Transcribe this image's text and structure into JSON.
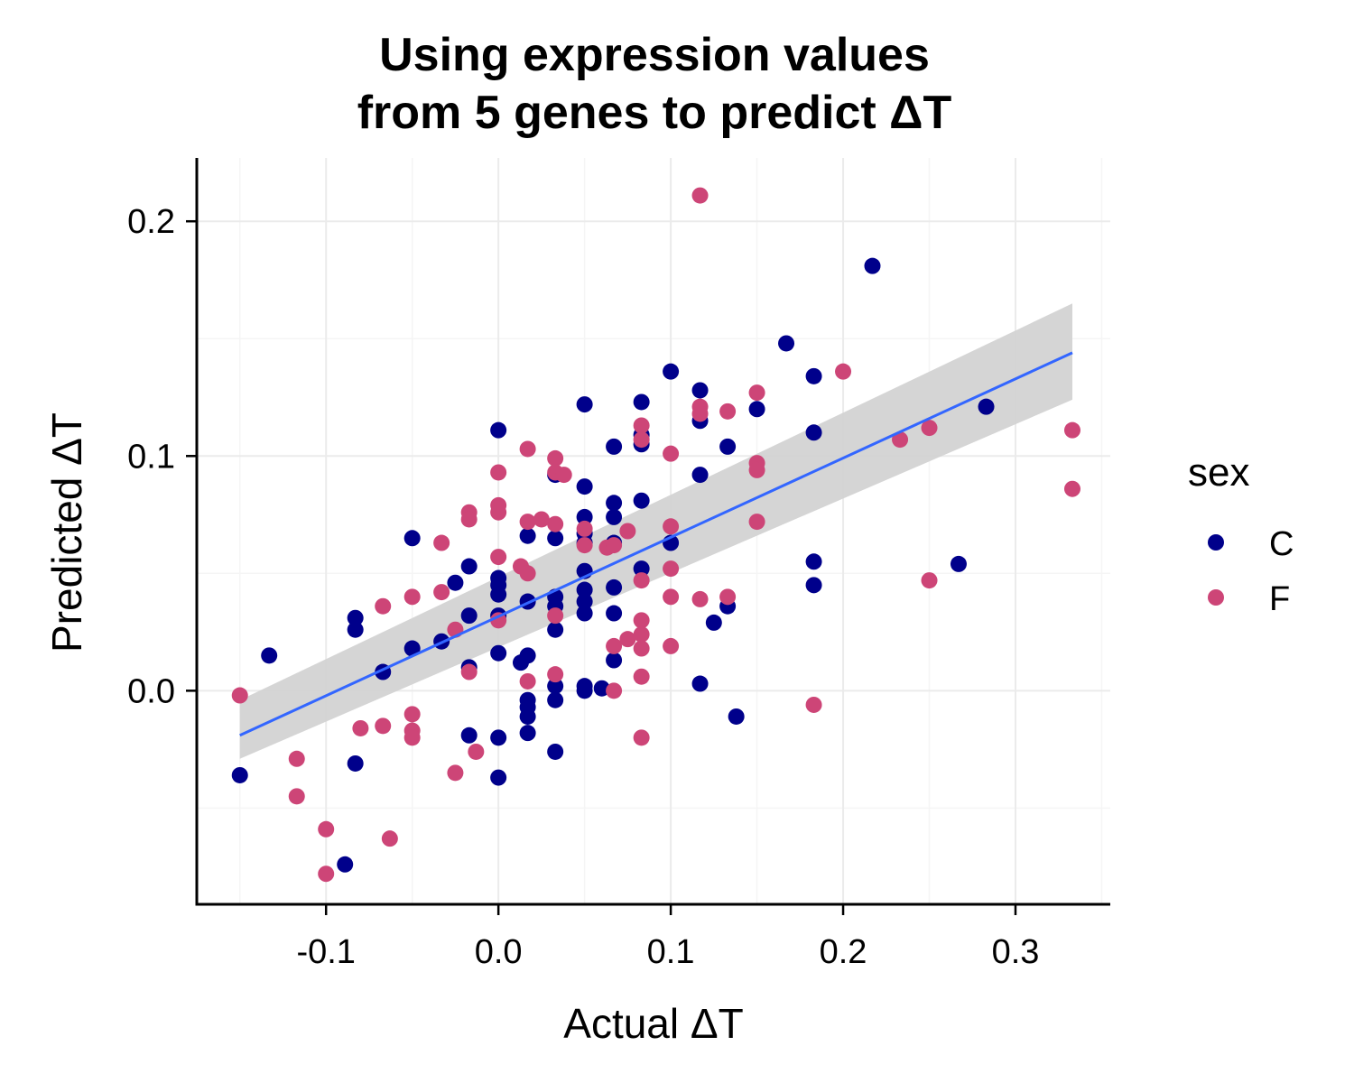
{
  "chart_data": {
    "type": "scatter",
    "title_lines": [
      "Using expression values",
      "from 5 genes to predict ΔT"
    ],
    "xlabel": "Actual ΔT",
    "ylabel": "Predicted ΔT",
    "xlim": [
      -0.175,
      0.355
    ],
    "ylim": [
      -0.091,
      0.227
    ],
    "xticks": [
      -0.1,
      0.0,
      0.1,
      0.2,
      0.3
    ],
    "xtick_labels": [
      "-0.1",
      "0.0",
      "0.1",
      "0.2",
      "0.3"
    ],
    "yticks": [
      0.0,
      0.1,
      0.2
    ],
    "ytick_labels": [
      "0.0",
      "0.1",
      "0.2"
    ],
    "grid": true,
    "legend": {
      "title": "sex",
      "placement": "right",
      "entries": [
        {
          "label": "C",
          "color": "#00008b"
        },
        {
          "label": "F",
          "color": "#cd4577"
        }
      ]
    },
    "series": [
      {
        "name": "C",
        "color": "#00008b",
        "points": [
          [
            -0.15,
            -0.036
          ],
          [
            -0.133,
            0.015
          ],
          [
            -0.089,
            -0.074
          ],
          [
            -0.083,
            -0.031
          ],
          [
            -0.083,
            0.026
          ],
          [
            -0.083,
            0.031
          ],
          [
            -0.067,
            0.008
          ],
          [
            -0.05,
            0.065
          ],
          [
            -0.05,
            0.018
          ],
          [
            -0.033,
            0.021
          ],
          [
            -0.025,
            0.046
          ],
          [
            -0.017,
            0.053
          ],
          [
            -0.017,
            0.032
          ],
          [
            -0.017,
            0.01
          ],
          [
            -0.017,
            -0.019
          ],
          [
            0.0,
            0.111
          ],
          [
            0.0,
            0.048
          ],
          [
            0.0,
            0.045
          ],
          [
            0.0,
            0.041
          ],
          [
            0.0,
            0.032
          ],
          [
            0.0,
            0.016
          ],
          [
            0.0,
            -0.02
          ],
          [
            0.0,
            -0.037
          ],
          [
            0.013,
            0.012
          ],
          [
            0.017,
            0.066
          ],
          [
            0.017,
            0.038
          ],
          [
            0.017,
            0.015
          ],
          [
            0.017,
            -0.004
          ],
          [
            0.017,
            -0.007
          ],
          [
            0.017,
            -0.011
          ],
          [
            0.017,
            -0.018
          ],
          [
            0.033,
            0.092
          ],
          [
            0.033,
            0.065
          ],
          [
            0.033,
            0.04
          ],
          [
            0.033,
            0.036
          ],
          [
            0.033,
            0.026
          ],
          [
            0.033,
            0.002
          ],
          [
            0.033,
            -0.004
          ],
          [
            0.033,
            -0.026
          ],
          [
            0.05,
            0.122
          ],
          [
            0.05,
            0.087
          ],
          [
            0.05,
            0.074
          ],
          [
            0.05,
            0.067
          ],
          [
            0.05,
            0.063
          ],
          [
            0.05,
            0.051
          ],
          [
            0.05,
            0.043
          ],
          [
            0.05,
            0.038
          ],
          [
            0.05,
            0.033
          ],
          [
            0.05,
            0.002
          ],
          [
            0.05,
            0.0
          ],
          [
            0.06,
            0.001
          ],
          [
            0.067,
            0.104
          ],
          [
            0.067,
            0.08
          ],
          [
            0.067,
            0.074
          ],
          [
            0.067,
            0.063
          ],
          [
            0.067,
            0.044
          ],
          [
            0.067,
            0.033
          ],
          [
            0.067,
            0.013
          ],
          [
            0.083,
            0.123
          ],
          [
            0.083,
            0.109
          ],
          [
            0.083,
            0.105
          ],
          [
            0.083,
            0.081
          ],
          [
            0.083,
            0.052
          ],
          [
            0.1,
            0.136
          ],
          [
            0.1,
            0.063
          ],
          [
            0.117,
            0.128
          ],
          [
            0.117,
            0.115
          ],
          [
            0.117,
            0.092
          ],
          [
            0.117,
            0.003
          ],
          [
            0.125,
            0.029
          ],
          [
            0.133,
            0.104
          ],
          [
            0.133,
            0.036
          ],
          [
            0.138,
            -0.011
          ],
          [
            0.15,
            0.12
          ],
          [
            0.167,
            0.148
          ],
          [
            0.183,
            0.134
          ],
          [
            0.183,
            0.11
          ],
          [
            0.183,
            0.055
          ],
          [
            0.183,
            0.045
          ],
          [
            0.217,
            0.181
          ],
          [
            0.267,
            0.054
          ],
          [
            0.283,
            0.121
          ]
        ]
      },
      {
        "name": "F",
        "color": "#cd4577",
        "points": [
          [
            -0.15,
            -0.002
          ],
          [
            -0.117,
            -0.029
          ],
          [
            -0.117,
            -0.045
          ],
          [
            -0.1,
            -0.059
          ],
          [
            -0.1,
            -0.078
          ],
          [
            -0.08,
            -0.016
          ],
          [
            -0.067,
            0.036
          ],
          [
            -0.067,
            -0.015
          ],
          [
            -0.063,
            -0.063
          ],
          [
            -0.05,
            0.04
          ],
          [
            -0.05,
            -0.01
          ],
          [
            -0.05,
            -0.017
          ],
          [
            -0.05,
            -0.02
          ],
          [
            -0.033,
            0.063
          ],
          [
            -0.033,
            0.042
          ],
          [
            -0.025,
            0.026
          ],
          [
            -0.025,
            -0.035
          ],
          [
            -0.017,
            0.076
          ],
          [
            -0.017,
            0.073
          ],
          [
            -0.017,
            0.008
          ],
          [
            -0.013,
            -0.026
          ],
          [
            0.0,
            0.093
          ],
          [
            0.0,
            0.079
          ],
          [
            0.0,
            0.076
          ],
          [
            0.0,
            0.057
          ],
          [
            0.0,
            0.03
          ],
          [
            0.013,
            0.053
          ],
          [
            0.017,
            0.103
          ],
          [
            0.017,
            0.072
          ],
          [
            0.017,
            0.05
          ],
          [
            0.017,
            0.004
          ],
          [
            0.025,
            0.073
          ],
          [
            0.033,
            0.099
          ],
          [
            0.033,
            0.093
          ],
          [
            0.033,
            0.071
          ],
          [
            0.033,
            0.032
          ],
          [
            0.033,
            0.007
          ],
          [
            0.038,
            0.092
          ],
          [
            0.05,
            0.069
          ],
          [
            0.05,
            0.062
          ],
          [
            0.063,
            0.061
          ],
          [
            0.067,
            0.062
          ],
          [
            0.067,
            0.019
          ],
          [
            0.067,
            0.0
          ],
          [
            0.075,
            0.068
          ],
          [
            0.075,
            0.022
          ],
          [
            0.083,
            0.113
          ],
          [
            0.083,
            0.107
          ],
          [
            0.083,
            0.047
          ],
          [
            0.083,
            0.03
          ],
          [
            0.083,
            0.024
          ],
          [
            0.083,
            0.018
          ],
          [
            0.083,
            0.006
          ],
          [
            0.083,
            -0.02
          ],
          [
            0.1,
            0.101
          ],
          [
            0.1,
            0.07
          ],
          [
            0.1,
            0.052
          ],
          [
            0.1,
            0.04
          ],
          [
            0.1,
            0.019
          ],
          [
            0.117,
            0.211
          ],
          [
            0.117,
            0.121
          ],
          [
            0.117,
            0.118
          ],
          [
            0.117,
            0.039
          ],
          [
            0.133,
            0.119
          ],
          [
            0.133,
            0.04
          ],
          [
            0.15,
            0.127
          ],
          [
            0.15,
            0.097
          ],
          [
            0.15,
            0.094
          ],
          [
            0.15,
            0.072
          ],
          [
            0.183,
            -0.006
          ],
          [
            0.2,
            0.136
          ],
          [
            0.233,
            0.107
          ],
          [
            0.25,
            0.112
          ],
          [
            0.25,
            0.047
          ],
          [
            0.333,
            0.111
          ],
          [
            0.333,
            0.086
          ]
        ]
      }
    ],
    "trend": {
      "color": "#3366ff",
      "band_color": "#d3d3d3",
      "x": [
        -0.15,
        0.333
      ],
      "y": [
        -0.019,
        0.144
      ],
      "band_lower": [
        -0.029,
        0.124
      ],
      "band_upper": [
        -0.004,
        0.165
      ]
    }
  }
}
